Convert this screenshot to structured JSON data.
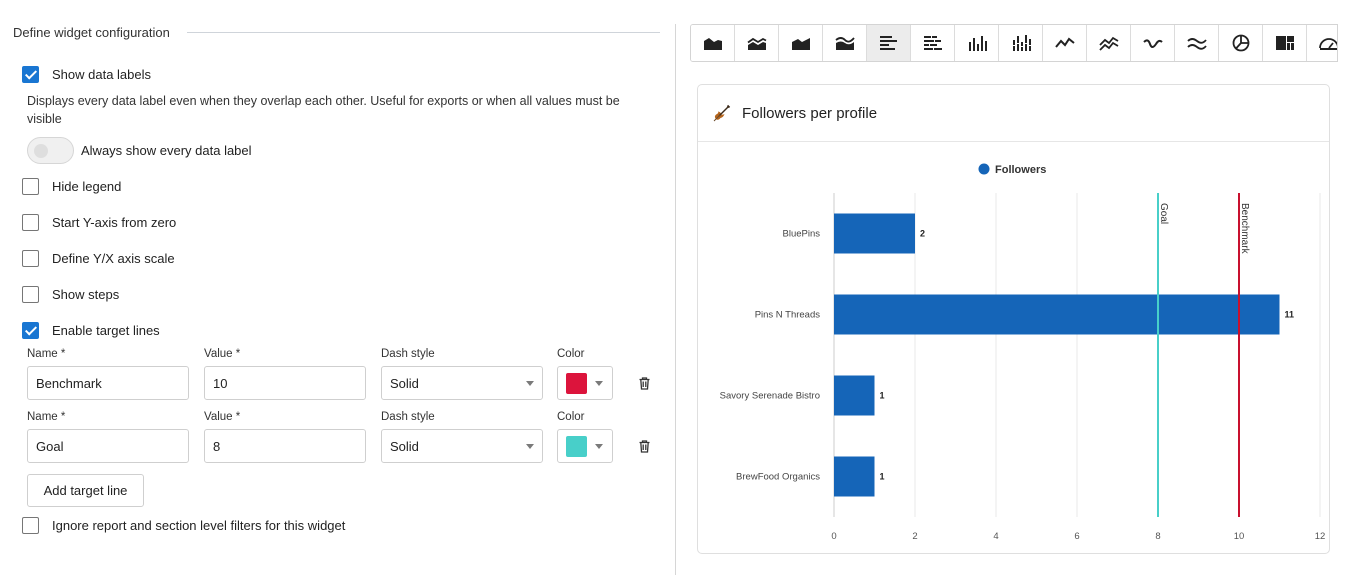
{
  "config": {
    "section_title": "Define widget configuration",
    "options": {
      "show_data_labels": {
        "label": "Show data labels",
        "checked": true
      },
      "labels_description": "Displays every data label even when they overlap each other. Useful for exports or when all values must be visible",
      "always_show_labels": {
        "label": "Always show every data label",
        "on": false
      },
      "hide_legend": {
        "label": "Hide legend",
        "checked": false
      },
      "start_y_zero": {
        "label": "Start Y-axis from zero",
        "checked": false
      },
      "define_scale": {
        "label": "Define Y/X axis scale",
        "checked": false
      },
      "show_steps": {
        "label": "Show steps",
        "checked": false
      },
      "enable_target_lines": {
        "label": "Enable target lines",
        "checked": true
      },
      "ignore_filters": {
        "label": "Ignore report and section level filters for this widget",
        "checked": false
      }
    },
    "field_labels": {
      "name": "Name *",
      "value": "Value *",
      "dash_style": "Dash style",
      "color": "Color"
    },
    "target_lines": [
      {
        "name": "Benchmark",
        "value": "10",
        "dash_style": "Solid",
        "color": "#dc143c"
      },
      {
        "name": "Goal",
        "value": "8",
        "dash_style": "Solid",
        "color": "#48cfc9"
      }
    ],
    "add_target_label": "Add target line"
  },
  "toolbar": {
    "items": [
      {
        "icon": "area-chart-icon"
      },
      {
        "icon": "stacked-area-chart-icon"
      },
      {
        "icon": "step-area-chart-icon"
      },
      {
        "icon": "streamgraph-chart-icon"
      },
      {
        "icon": "horizontal-bar-chart-icon",
        "active": true
      },
      {
        "icon": "stacked-horizontal-bar-chart-icon"
      },
      {
        "icon": "column-chart-icon"
      },
      {
        "icon": "stacked-column-chart-icon"
      },
      {
        "icon": "line-chart-icon"
      },
      {
        "icon": "multi-line-chart-icon"
      },
      {
        "icon": "spline-chart-icon"
      },
      {
        "icon": "multi-spline-chart-icon"
      },
      {
        "icon": "pie-chart-icon"
      },
      {
        "icon": "treemap-chart-icon"
      },
      {
        "icon": "gauge-chart-icon"
      }
    ]
  },
  "widget": {
    "title": "Followers per profile",
    "icon": "violin-icon"
  },
  "chart_data": {
    "type": "bar",
    "orientation": "horizontal",
    "title": "Followers per profile",
    "categories": [
      "BluePins",
      "Pins N Threads",
      "Savory Serenade Bistro",
      "BrewFood Organics"
    ],
    "series": [
      {
        "name": "Followers",
        "values": [
          2,
          11,
          1,
          1
        ],
        "color": "#1565b8"
      }
    ],
    "xlim": [
      0,
      12
    ],
    "ticks": [
      "0",
      "2",
      "4",
      "6",
      "8",
      "10",
      "12"
    ],
    "grid": true,
    "legend": "top-center",
    "data_labels": true,
    "target_lines": [
      {
        "name": "Goal",
        "value": 8,
        "color": "#48cfc9"
      },
      {
        "name": "Benchmark",
        "value": 10,
        "color": "#c8102e"
      }
    ]
  }
}
